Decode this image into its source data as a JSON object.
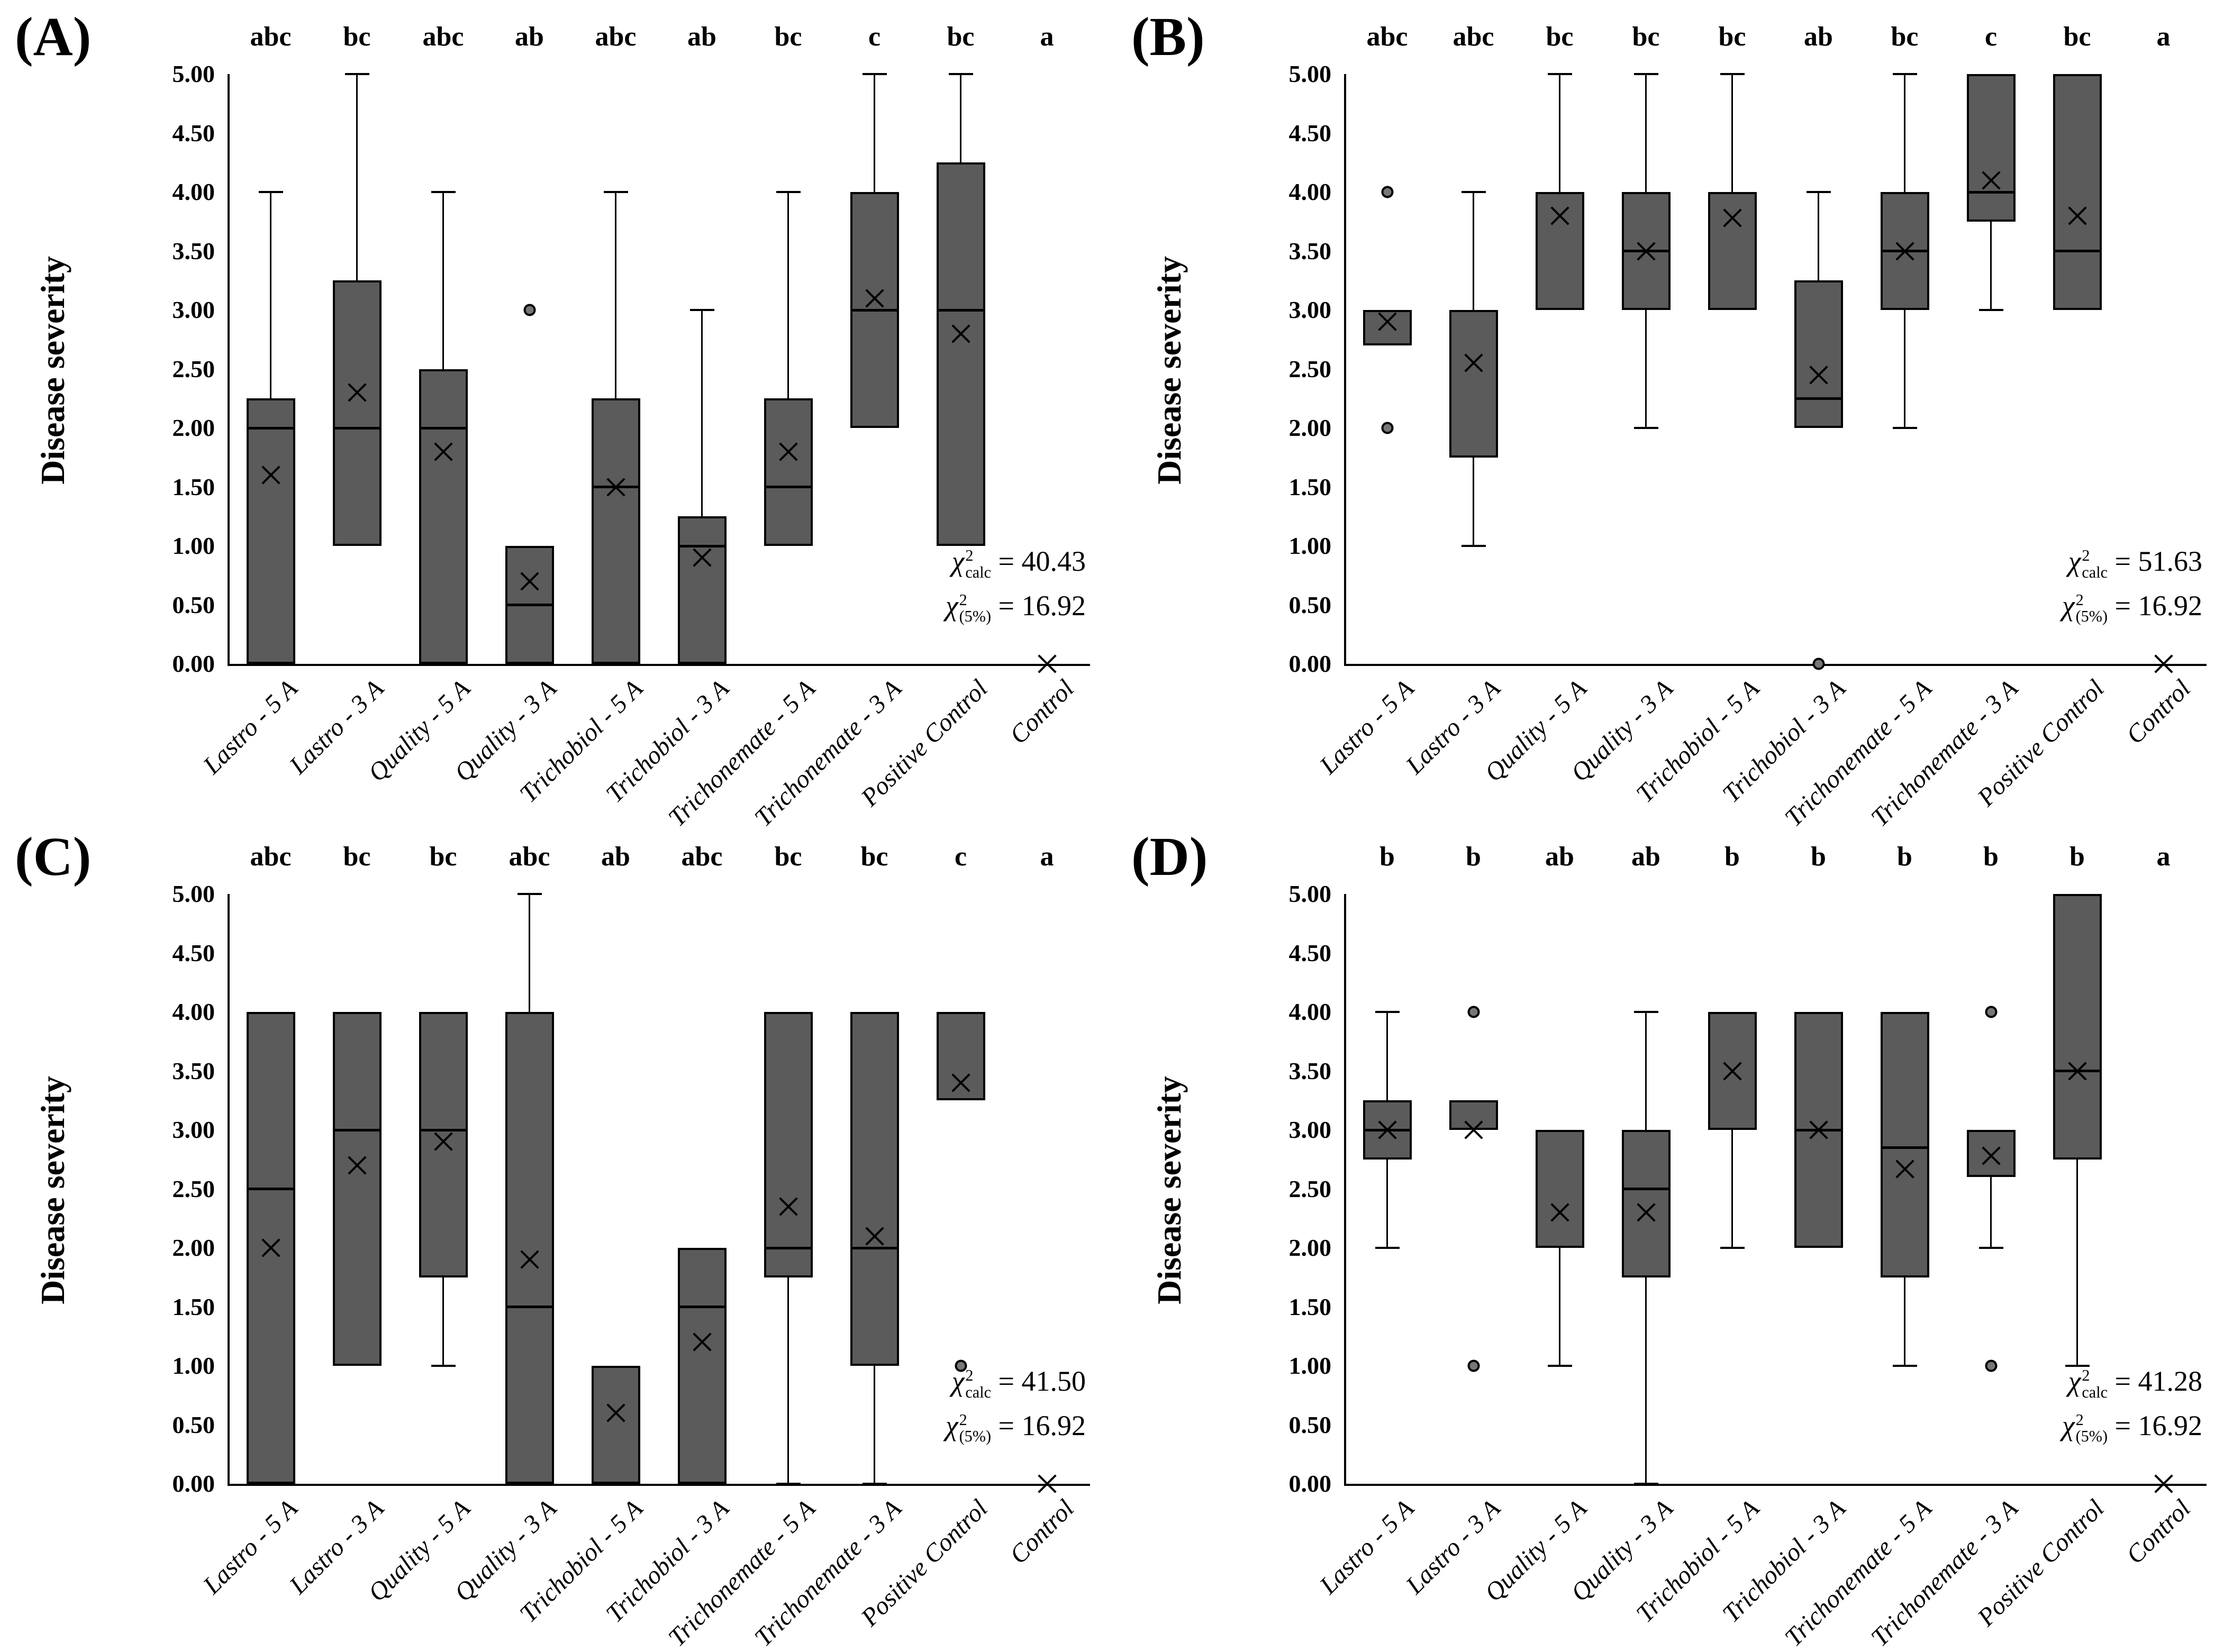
{
  "chart_data": {
    "type": "box",
    "ylabel": "Disease severity",
    "ylim": [
      0,
      5
    ],
    "yticks": [
      "5.00",
      "4.50",
      "4.00",
      "3.50",
      "3.00",
      "2.50",
      "2.00",
      "1.50",
      "1.00",
      "0.50",
      "0.00"
    ],
    "grid": false,
    "categories": [
      "Lastro - 5 A",
      "Lastro - 3 A",
      "Quality - 5 A",
      "Quality - 3 A",
      "Trichobiol - 5 A",
      "Trichobiol - 3 A",
      "Trichonemate - 5 A",
      "Trichonemate - 3 A",
      "Positive Control",
      "Control"
    ],
    "mean_marker": "x-cross",
    "outlier_marker": "dot",
    "colors": {
      "box_fill": "#5b5b5b",
      "box_border": "#000000",
      "outlier_fill": "#777777",
      "text": "#000000",
      "background": "#ffffff"
    },
    "annotation_labels": {
      "chi_symbol": "χ",
      "chi_exponent": "2",
      "calc_subscript": "calc",
      "crit_subscript": "(5%)",
      "equals_sign": "="
    },
    "panels": [
      {
        "label": "(A)",
        "letters": [
          "abc",
          "bc",
          "abc",
          "ab",
          "abc",
          "ab",
          "bc",
          "c",
          "bc",
          "a"
        ],
        "chi_calc": "40.43",
        "chi_5pct": "16.92",
        "boxes": [
          {
            "q1": 0,
            "q3": 2.25,
            "median": 2.0,
            "mean": 1.6,
            "whisker_low": null,
            "whisker_high": 4.0,
            "outliers": []
          },
          {
            "q1": 1.0,
            "q3": 3.25,
            "median": 2.0,
            "mean": 2.3,
            "whisker_low": null,
            "whisker_high": 5.0,
            "outliers": []
          },
          {
            "q1": 0,
            "q3": 2.5,
            "median": 2.0,
            "mean": 1.8,
            "whisker_low": null,
            "whisker_high": 4.0,
            "outliers": []
          },
          {
            "q1": 0,
            "q3": 1.0,
            "median": 0.5,
            "mean": 0.7,
            "whisker_low": null,
            "whisker_high": null,
            "outliers": [
              3.0
            ]
          },
          {
            "q1": 0,
            "q3": 2.25,
            "median": 1.5,
            "mean": 1.5,
            "whisker_low": null,
            "whisker_high": 4.0,
            "outliers": []
          },
          {
            "q1": 0,
            "q3": 1.25,
            "median": 1.0,
            "mean": 0.9,
            "whisker_low": null,
            "whisker_high": 3.0,
            "outliers": []
          },
          {
            "q1": 1.0,
            "q3": 2.25,
            "median": 1.5,
            "mean": 1.8,
            "whisker_low": null,
            "whisker_high": 4.0,
            "outliers": []
          },
          {
            "q1": 2.0,
            "q3": 4.0,
            "median": 3.0,
            "mean": 3.1,
            "whisker_low": null,
            "whisker_high": 5.0,
            "outliers": []
          },
          {
            "q1": 1.0,
            "q3": 4.25,
            "median": 3.0,
            "mean": 2.8,
            "whisker_low": null,
            "whisker_high": 5.0,
            "outliers": []
          },
          {
            "q1": null,
            "q3": null,
            "median": null,
            "mean": 0,
            "whisker_low": null,
            "whisker_high": null,
            "outliers": []
          }
        ]
      },
      {
        "label": "(B)",
        "letters": [
          "abc",
          "abc",
          "bc",
          "bc",
          "bc",
          "ab",
          "bc",
          "c",
          "bc",
          "a"
        ],
        "chi_calc": "51.63",
        "chi_5pct": "16.92",
        "boxes": [
          {
            "q1": 2.7,
            "q3": 3.0,
            "median": null,
            "mean": 2.9,
            "whisker_low": null,
            "whisker_high": null,
            "outliers": [
              4.0,
              2.0
            ]
          },
          {
            "q1": 1.75,
            "q3": 3.0,
            "median": null,
            "mean": 2.55,
            "whisker_low": 1.0,
            "whisker_high": 4.0,
            "outliers": []
          },
          {
            "q1": 3.0,
            "q3": 4.0,
            "median": null,
            "mean": 3.8,
            "whisker_low": null,
            "whisker_high": 5.0,
            "outliers": []
          },
          {
            "q1": 3.0,
            "q3": 4.0,
            "median": 3.5,
            "mean": 3.5,
            "whisker_low": 2.0,
            "whisker_high": 5.0,
            "outliers": []
          },
          {
            "q1": 3.0,
            "q3": 4.0,
            "median": null,
            "mean": 3.78,
            "whisker_low": null,
            "whisker_high": 5.0,
            "outliers": []
          },
          {
            "q1": 2.0,
            "q3": 3.25,
            "median": 2.25,
            "mean": 2.45,
            "whisker_low": null,
            "whisker_high": 4.0,
            "outliers": [
              0
            ]
          },
          {
            "q1": 3.0,
            "q3": 4.0,
            "median": 3.5,
            "mean": 3.5,
            "whisker_low": 2.0,
            "whisker_high": 5.0,
            "outliers": []
          },
          {
            "q1": 3.75,
            "q3": 5.0,
            "median": 4.0,
            "mean": 4.1,
            "whisker_low": 3.0,
            "whisker_high": null,
            "outliers": []
          },
          {
            "q1": 3.0,
            "q3": 5.0,
            "median": 3.5,
            "mean": 3.8,
            "whisker_low": null,
            "whisker_high": null,
            "outliers": []
          },
          {
            "q1": null,
            "q3": null,
            "median": null,
            "mean": 0,
            "whisker_low": null,
            "whisker_high": null,
            "outliers": []
          }
        ]
      },
      {
        "label": "(C)",
        "letters": [
          "abc",
          "bc",
          "bc",
          "abc",
          "ab",
          "abc",
          "bc",
          "bc",
          "c",
          "a"
        ],
        "chi_calc": "41.50",
        "chi_5pct": "16.92",
        "boxes": [
          {
            "q1": 0,
            "q3": 4.0,
            "median": 2.5,
            "mean": 2.0,
            "whisker_low": null,
            "whisker_high": null,
            "outliers": []
          },
          {
            "q1": 1.0,
            "q3": 4.0,
            "median": 3.0,
            "mean": 2.7,
            "whisker_low": null,
            "whisker_high": null,
            "outliers": []
          },
          {
            "q1": 1.75,
            "q3": 4.0,
            "median": 3.0,
            "mean": 2.9,
            "whisker_low": 1.0,
            "whisker_high": null,
            "outliers": []
          },
          {
            "q1": 0,
            "q3": 4.0,
            "median": 1.5,
            "mean": 1.9,
            "whisker_low": null,
            "whisker_high": 5.0,
            "outliers": []
          },
          {
            "q1": 0,
            "q3": 1.0,
            "median": null,
            "mean": 0.6,
            "whisker_low": null,
            "whisker_high": null,
            "outliers": []
          },
          {
            "q1": 0,
            "q3": 2.0,
            "median": 1.5,
            "mean": 1.2,
            "whisker_low": null,
            "whisker_high": null,
            "outliers": []
          },
          {
            "q1": 1.75,
            "q3": 4.0,
            "median": 2.0,
            "mean": 2.35,
            "whisker_low": 0,
            "whisker_high": null,
            "outliers": []
          },
          {
            "q1": 1.0,
            "q3": 4.0,
            "median": 2.0,
            "mean": 2.1,
            "whisker_low": 0,
            "whisker_high": null,
            "outliers": []
          },
          {
            "q1": 3.25,
            "q3": 4.0,
            "median": null,
            "mean": 3.4,
            "whisker_low": null,
            "whisker_high": null,
            "outliers": [
              1.0
            ]
          },
          {
            "q1": null,
            "q3": null,
            "median": null,
            "mean": 0,
            "whisker_low": null,
            "whisker_high": null,
            "outliers": []
          }
        ]
      },
      {
        "label": "(D)",
        "letters": [
          "b",
          "b",
          "ab",
          "ab",
          "b",
          "b",
          "b",
          "b",
          "b",
          "a"
        ],
        "chi_calc": "41.28",
        "chi_5pct": "16.92",
        "boxes": [
          {
            "q1": 2.75,
            "q3": 3.25,
            "median": 3.0,
            "mean": 3.0,
            "whisker_low": 2.0,
            "whisker_high": 4.0,
            "outliers": []
          },
          {
            "q1": 3.0,
            "q3": 3.25,
            "median": null,
            "mean": 3.0,
            "whisker_low": null,
            "whisker_high": null,
            "outliers": [
              4.0,
              1.0
            ]
          },
          {
            "q1": 2.0,
            "q3": 3.0,
            "median": null,
            "mean": 2.3,
            "whisker_low": 1.0,
            "whisker_high": null,
            "outliers": []
          },
          {
            "q1": 1.75,
            "q3": 3.0,
            "median": 2.5,
            "mean": 2.3,
            "whisker_low": 0,
            "whisker_high": 4.0,
            "outliers": []
          },
          {
            "q1": 3.0,
            "q3": 4.0,
            "median": null,
            "mean": 3.5,
            "whisker_low": 2.0,
            "whisker_high": null,
            "outliers": []
          },
          {
            "q1": 2.0,
            "q3": 4.0,
            "median": 3.0,
            "mean": 3.0,
            "whisker_low": null,
            "whisker_high": null,
            "outliers": []
          },
          {
            "q1": 1.75,
            "q3": 4.0,
            "median": 2.85,
            "mean": 2.67,
            "whisker_low": 1.0,
            "whisker_high": null,
            "outliers": []
          },
          {
            "q1": 2.6,
            "q3": 3.0,
            "median": null,
            "mean": 2.78,
            "whisker_low": 2.0,
            "whisker_high": null,
            "outliers": [
              4.0,
              1.0
            ]
          },
          {
            "q1": 2.75,
            "q3": 5.0,
            "median": 3.5,
            "mean": 3.5,
            "whisker_low": 1.0,
            "whisker_high": null,
            "outliers": []
          },
          {
            "q1": null,
            "q3": null,
            "median": null,
            "mean": 0,
            "whisker_low": null,
            "whisker_high": null,
            "outliers": []
          }
        ]
      }
    ]
  }
}
